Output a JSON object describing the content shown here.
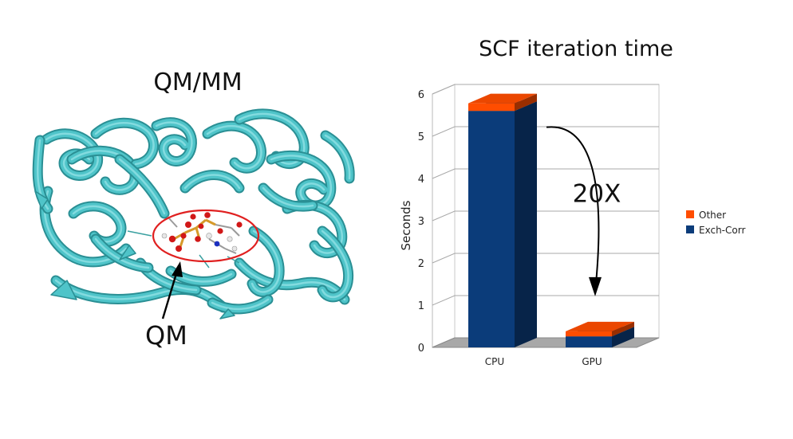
{
  "left_panel": {
    "title": "QM/MM",
    "qm_label": "QM",
    "ribbon_color": "#4fc4c9",
    "ellipse_color": "#e02020"
  },
  "chart_data": {
    "type": "bar",
    "stacked": true,
    "title": "SCF iteration time",
    "xlabel": "",
    "ylabel": "Seconds",
    "ylim": [
      0,
      6
    ],
    "yticks": [
      0,
      1,
      2,
      3,
      4,
      5,
      6
    ],
    "categories": [
      "CPU",
      "GPU"
    ],
    "series": [
      {
        "name": "Exch-Corr",
        "color": "#0b3c7a",
        "values": [
          5.6,
          0.26
        ]
      },
      {
        "name": "Other",
        "color": "#ff4d00",
        "values": [
          0.18,
          0.12
        ]
      }
    ],
    "legend": "right",
    "grid": true,
    "annotation": {
      "text": "20X",
      "from": "CPU",
      "to": "GPU"
    }
  }
}
